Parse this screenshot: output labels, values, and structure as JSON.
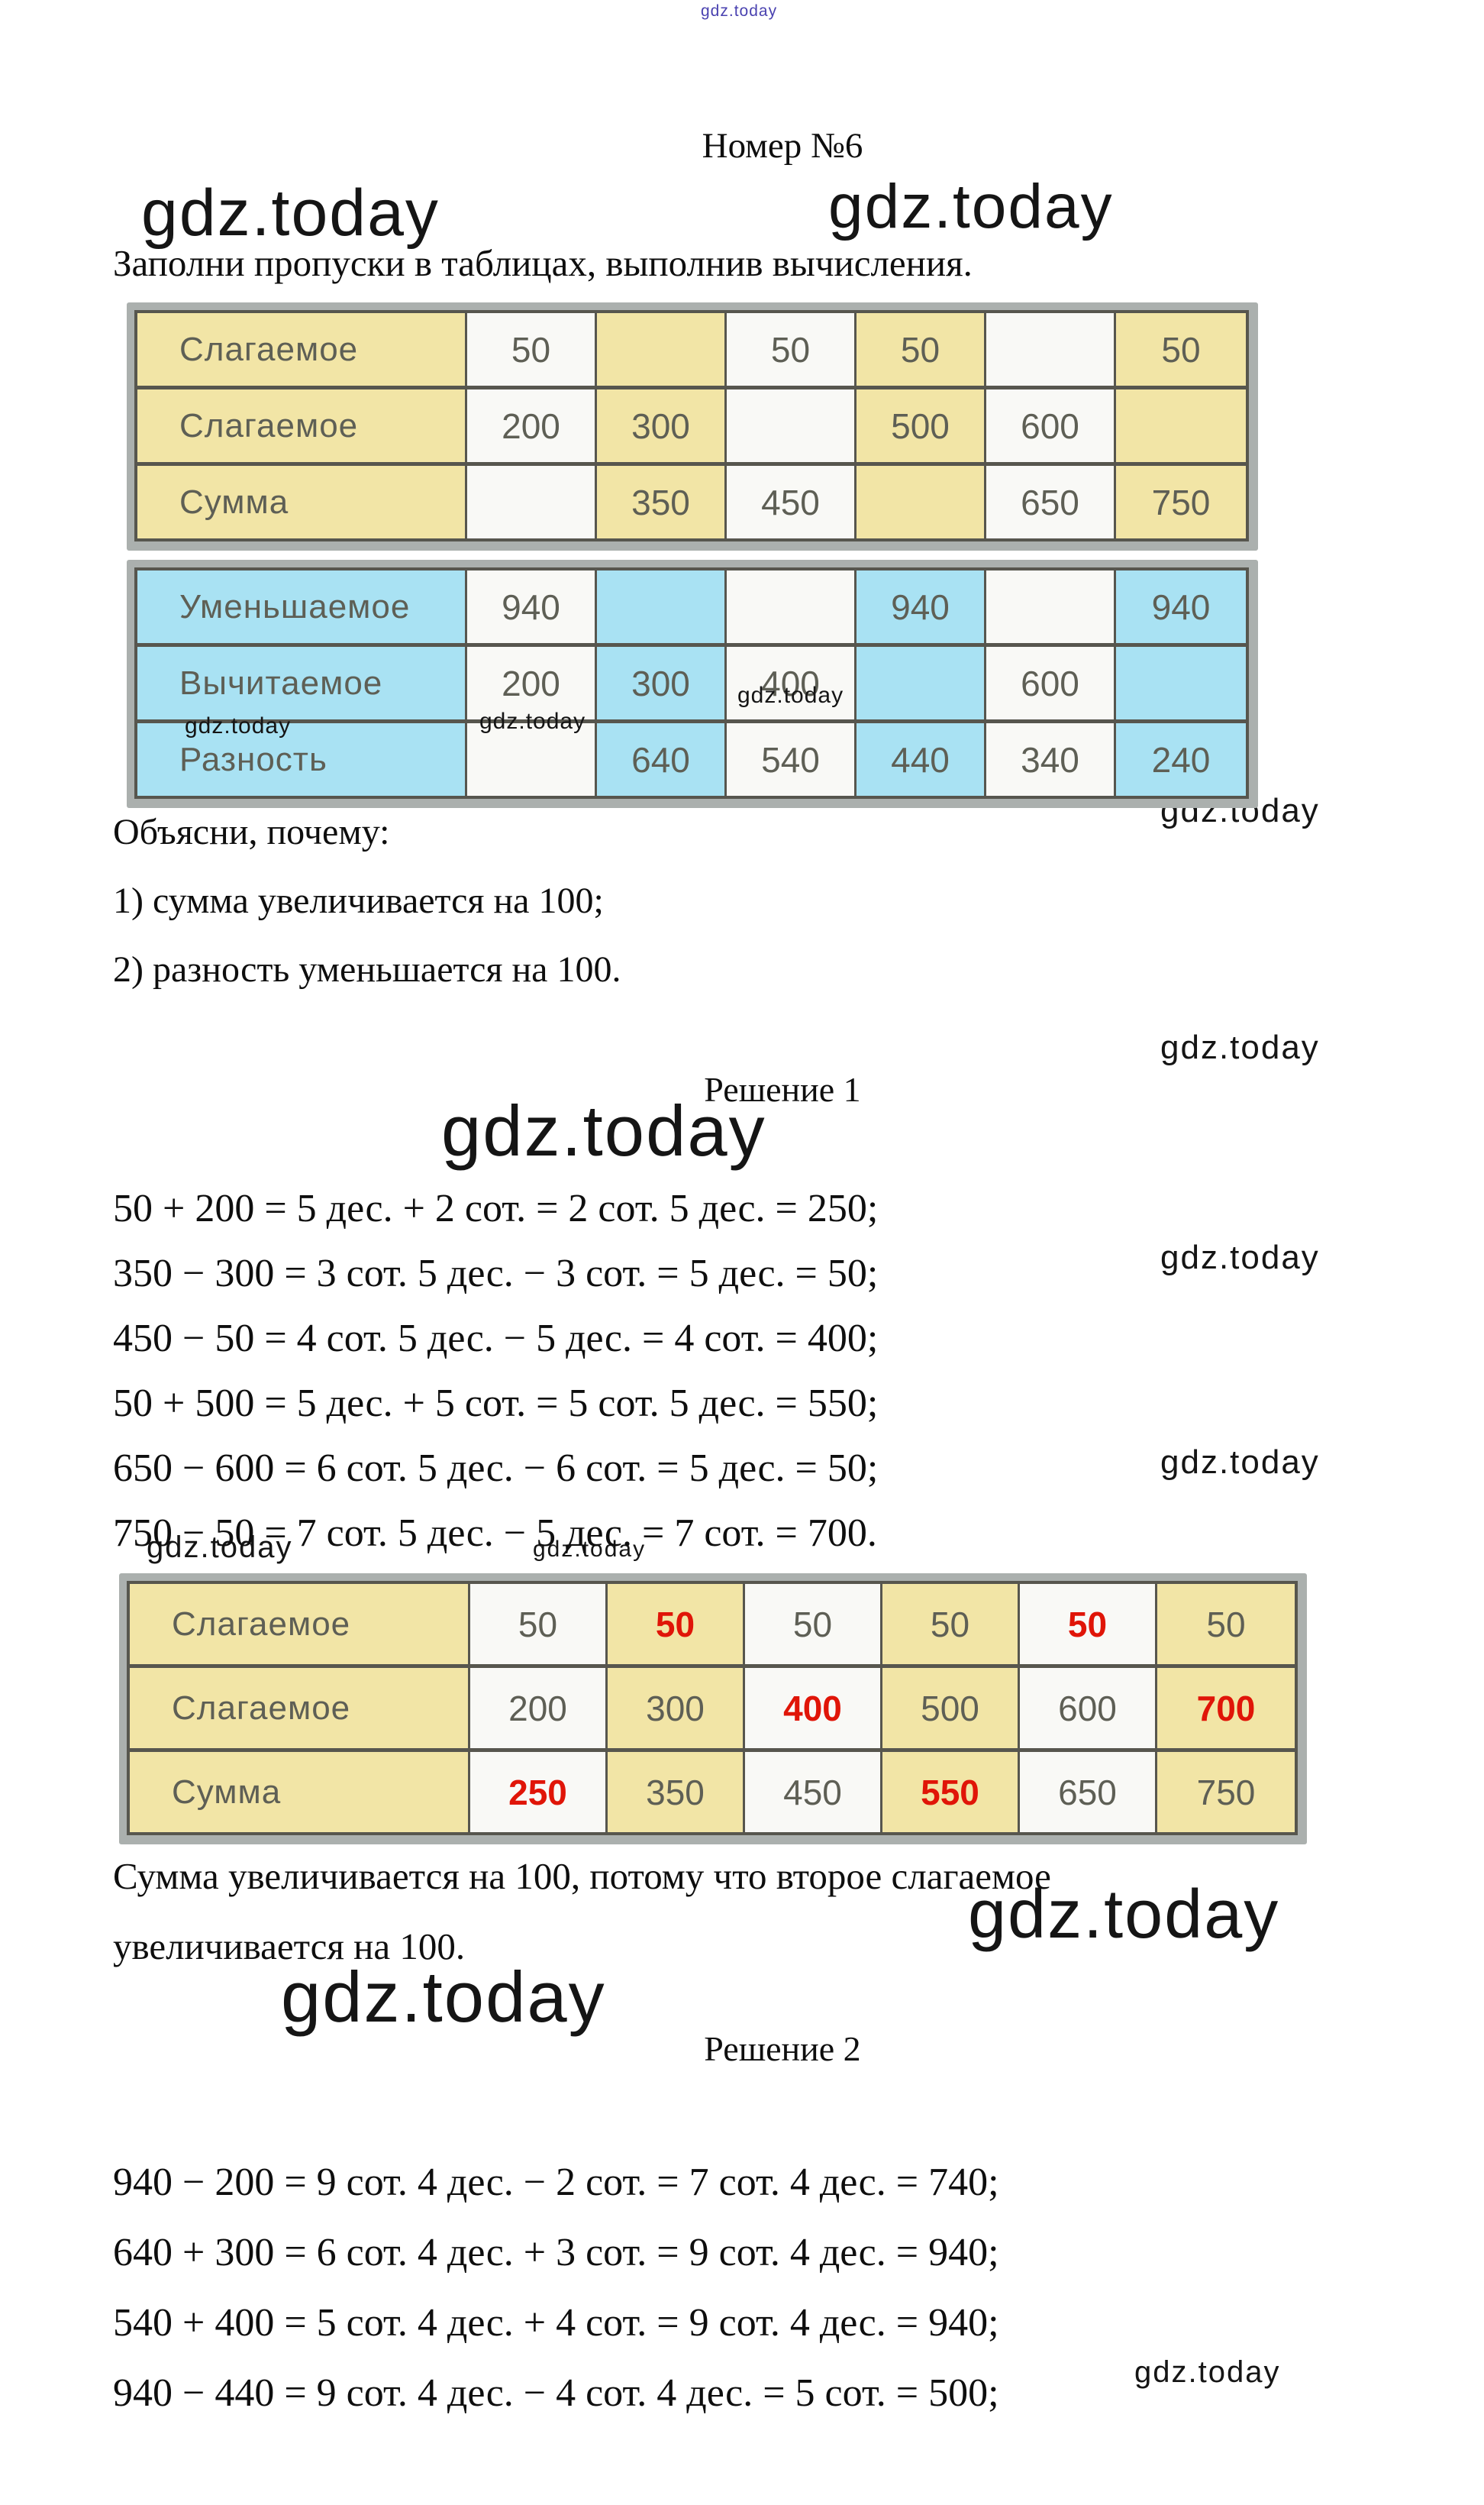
{
  "watermark_text": "gdz.today",
  "top_watermark": {
    "text": "gdz.today",
    "color": "#4a42b0"
  },
  "header": {
    "title": "Номер №6",
    "task": "Заполни пропуски в таблицах, выполнив вычисления."
  },
  "tables": [
    {
      "id": "addition-blank",
      "theme": "yellow",
      "rows": [
        {
          "label": "Слагаемое",
          "cells": [
            "50",
            "",
            "50",
            "50",
            "",
            "50"
          ]
        },
        {
          "label": "Слагаемое",
          "cells": [
            "200",
            "300",
            "",
            "500",
            "600",
            ""
          ]
        },
        {
          "label": "Сумма",
          "cells": [
            "",
            "350",
            "450",
            "",
            "650",
            "750"
          ]
        }
      ]
    },
    {
      "id": "subtraction-blank",
      "theme": "blue",
      "rows": [
        {
          "label": "Уменьшаемое",
          "cells": [
            "940",
            "",
            "",
            "940",
            "",
            "940"
          ]
        },
        {
          "label": "Вычитаемое",
          "cells": [
            "200",
            "300",
            "400",
            "",
            "600",
            ""
          ]
        },
        {
          "label": "Разность",
          "cells": [
            "",
            "640",
            "540",
            "440",
            "340",
            "240"
          ]
        }
      ]
    },
    {
      "id": "addition-filled",
      "theme": "yellow",
      "rows": [
        {
          "label": "Слагаемое",
          "cells": [
            "50",
            {
              "v": "50",
              "red": true
            },
            "50",
            "50",
            {
              "v": "50",
              "red": true
            },
            "50"
          ]
        },
        {
          "label": "Слагаемое",
          "cells": [
            "200",
            "300",
            {
              "v": "400",
              "red": true
            },
            "500",
            "600",
            {
              "v": "700",
              "red": true
            }
          ]
        },
        {
          "label": "Сумма",
          "cells": [
            {
              "v": "250",
              "red": true
            },
            "350",
            "450",
            {
              "v": "550",
              "red": true
            },
            "650",
            "750"
          ]
        }
      ]
    }
  ],
  "explain": {
    "intro": "Объясни, почему:",
    "item1": "1) сумма увеличивается на 100;",
    "item2": "2) разность уменьшается на 100."
  },
  "solution1": {
    "title": "Решение 1",
    "lines": [
      "50 + 200 = 5 дес. + 2 сот. = 2 сот. 5 дес. = 250;",
      "350 − 300 = 3 сот. 5 дес. − 3 сот. = 5 дес. = 50;",
      "450 − 50 = 4 сот. 5 дес. − 5 дес. = 4 сот. = 400;",
      "50 + 500 = 5 дес. + 5 сот. = 5 сот. 5 дес. = 550;",
      "650 − 600 = 6 сот. 5 дес. − 6 сот. = 5 дес. = 50;",
      "750 − 50 = 7 сот. 5 дес. − 5 дес. = 7 сот. = 700."
    ]
  },
  "conclusion": {
    "line1": "Сумма увеличивается на 100, потому что второе слагаемое",
    "line2": "увеличивается на 100."
  },
  "solution2": {
    "title": "Решение 2",
    "lines": [
      "940 − 200 = 9 сот. 4 дес. − 2 сот. = 7 сот. 4 дес. = 740;",
      "640 + 300 = 6 сот. 4 дес. + 3 сот. = 9 сот. 4 дес. = 940;",
      "540 + 400 = 5 сот. 4 дес. + 4 сот. = 9 сот. 4 дес. = 940;",
      "940 − 440 = 9 сот. 4 дес. − 4 сот. 4 дес. = 5 сот. = 500;"
    ]
  },
  "colors": {
    "yellow": "#f2e5a6",
    "blue": "#a9e2f3",
    "cell_white": "#f9f9f6",
    "border": "#57564e",
    "red": "#e01508",
    "table_text": "#5e5f55",
    "frame_gray": "#abb0ae"
  }
}
